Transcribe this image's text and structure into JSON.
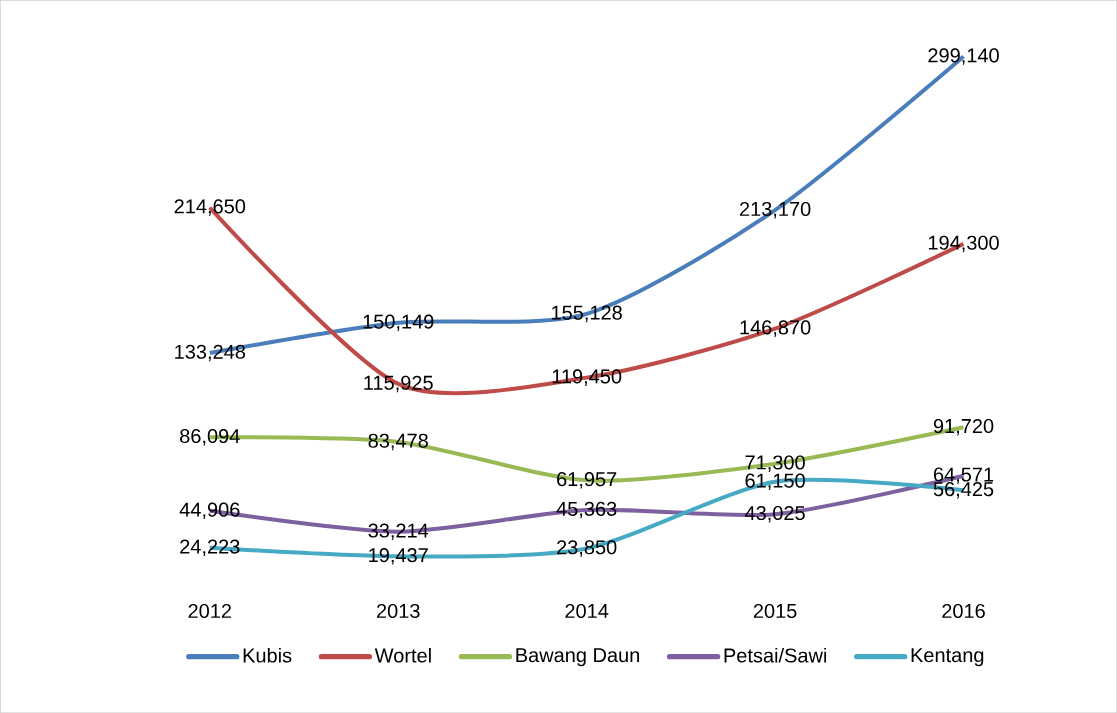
{
  "chart_data": {
    "type": "line",
    "categories": [
      "2012",
      "2013",
      "2014",
      "2015",
      "2016"
    ],
    "series": [
      {
        "name": "Kubis",
        "color": "#4a7ebb",
        "values": [
          133248,
          150149,
          155128,
          213170,
          299140
        ],
        "value_labels": [
          "133,248",
          "150,149",
          "155,128",
          "213,170",
          "299,140"
        ]
      },
      {
        "name": "Wortel",
        "color": "#be4b48",
        "values": [
          214650,
          115925,
          119450,
          146870,
          194300
        ],
        "value_labels": [
          "214,650",
          "115,925",
          "119,450",
          "146,870",
          "194,300"
        ]
      },
      {
        "name": "Bawang Daun",
        "color": "#98b954",
        "values": [
          86094,
          83478,
          61957,
          71300,
          91720
        ],
        "value_labels": [
          "86,094",
          "83,478",
          "61,957",
          "71,300",
          "91,720"
        ]
      },
      {
        "name": "Petsai/Sawi",
        "color": "#7d60a0",
        "values": [
          44906,
          33214,
          45363,
          43025,
          64571
        ],
        "value_labels": [
          "44,906",
          "33,214",
          "45,363",
          "43,025",
          "64,571"
        ]
      },
      {
        "name": "Kentang",
        "color": "#46aac5",
        "values": [
          24223,
          19437,
          23850,
          61150,
          56425
        ],
        "value_labels": [
          "24,223",
          "19,437",
          "23,850",
          "61,150",
          "56,425"
        ]
      }
    ],
    "legend": "bottom",
    "grid": false
  }
}
